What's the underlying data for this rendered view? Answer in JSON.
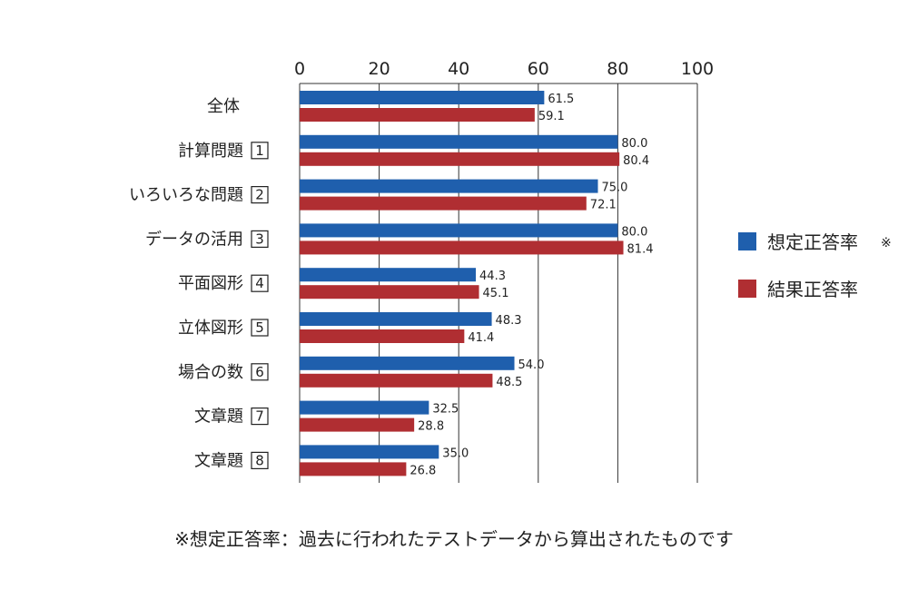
{
  "chart_data": {
    "type": "bar",
    "orientation": "horizontal",
    "xlim": [
      0,
      100
    ],
    "ticks": [
      0,
      20,
      40,
      60,
      80,
      100
    ],
    "categories": [
      {
        "label": "全体",
        "num": ""
      },
      {
        "label": "計算問題",
        "num": "1"
      },
      {
        "label": "いろいろな問題",
        "num": "2"
      },
      {
        "label": "データの活用",
        "num": "3"
      },
      {
        "label": "平面図形",
        "num": "4"
      },
      {
        "label": "立体図形",
        "num": "5"
      },
      {
        "label": "場合の数",
        "num": "6"
      },
      {
        "label": "文章題",
        "num": "7"
      },
      {
        "label": "文章題",
        "num": "8"
      }
    ],
    "series": [
      {
        "name": "想定正答率",
        "note": "※",
        "color": "#1f5fad",
        "values": [
          61.5,
          80.0,
          75.0,
          80.0,
          44.3,
          48.3,
          54.0,
          32.5,
          35.0
        ],
        "labels": [
          "61.5",
          "80.0",
          "75.0",
          "80.0",
          "44.3",
          "48.3",
          "54.0",
          "32.5",
          "35.0"
        ]
      },
      {
        "name": "結果正答率",
        "note": "",
        "color": "#b02e32",
        "values": [
          59.1,
          80.4,
          72.1,
          81.4,
          45.1,
          41.4,
          48.5,
          28.8,
          26.8
        ],
        "labels": [
          "59.1",
          "80.4",
          "72.1",
          "81.4",
          "45.1",
          "41.4",
          "48.5",
          "28.8",
          "26.8"
        ]
      }
    ],
    "legend_position": "right"
  },
  "footnote": "※想定正答率：過去に行われたテストデータから算出されたものです"
}
